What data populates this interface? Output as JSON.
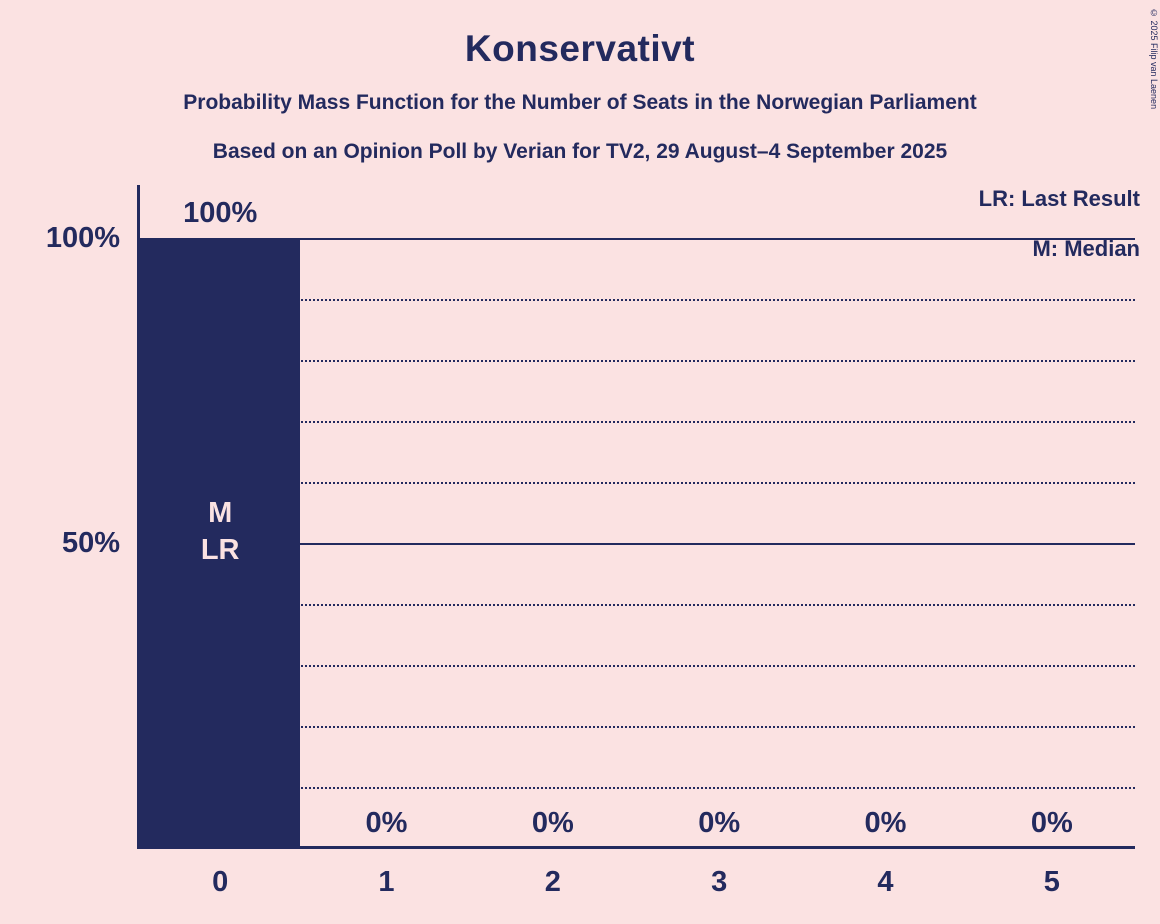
{
  "title": "Konservativt",
  "subtitle1": "Probability Mass Function for the Number of Seats in the Norwegian Parliament",
  "subtitle2": "Based on an Opinion Poll by Verian for TV2, 29 August–4 September 2025",
  "copyright": "© 2025 Filip van Laenen",
  "legend": {
    "lr": "LR: Last Result",
    "m": "M: Median"
  },
  "colors": {
    "background": "#fbe2e2",
    "navy": "#232a5e",
    "bar": "#232a5e"
  },
  "y_axis": {
    "labels": [
      {
        "text": "100%",
        "value": 100
      },
      {
        "text": "50%",
        "value": 50
      }
    ]
  },
  "chart_data": {
    "type": "bar",
    "title": "Konservativt",
    "categories": [
      "0",
      "1",
      "2",
      "3",
      "4",
      "5"
    ],
    "values": [
      100,
      0,
      0,
      0,
      0,
      0
    ],
    "value_labels": [
      "100%",
      "0%",
      "0%",
      "0%",
      "0%",
      "0%"
    ],
    "bar_annotations": [
      {
        "category": "0",
        "lines": [
          "M",
          "LR"
        ]
      }
    ],
    "xlabel": "",
    "ylabel": "",
    "ylim": [
      0,
      100
    ],
    "gridlines": {
      "solid": [
        100,
        50
      ],
      "dotted": [
        90,
        80,
        70,
        60,
        40,
        30,
        20,
        10
      ]
    },
    "legend_position": "top-right",
    "grid": true
  }
}
